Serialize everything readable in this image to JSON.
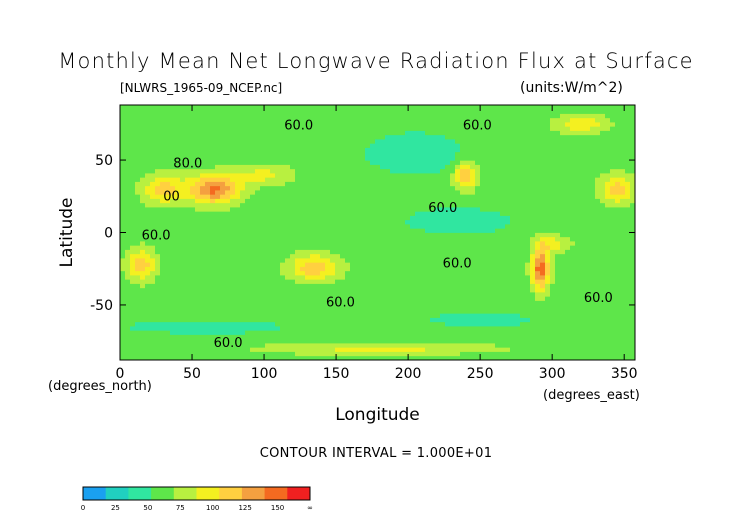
{
  "chart_data": {
    "type": "heatmap",
    "title": "Monthly Mean Net Longwave Radiation Flux at Surface",
    "file_label": "[NLWRS_1965-09_NCEP.nc]",
    "units_label": "(units:W/m^2)",
    "xlabel": "Longitude",
    "ylabel": "Latitude",
    "x_unit_label": "(degrees_east)",
    "y_unit_label": "(degrees_north)",
    "xlim": [
      0,
      357.5
    ],
    "ylim": [
      -88,
      88
    ],
    "x_ticks": [
      0,
      50,
      100,
      150,
      200,
      250,
      300,
      350
    ],
    "y_ticks": [
      -50,
      0,
      50
    ],
    "contour_interval_text": "CONTOUR INTERVAL = 1.000E+01",
    "contour_labels": [
      {
        "text": "60.0",
        "lon": 114,
        "lat": 71
      },
      {
        "text": "60.0",
        "lon": 238,
        "lat": 71
      },
      {
        "text": "80.0",
        "lon": 37,
        "lat": 45
      },
      {
        "text": "00",
        "lon": 30,
        "lat": 22
      },
      {
        "text": "60.0",
        "lon": 15,
        "lat": -5
      },
      {
        "text": "60.0",
        "lon": 214,
        "lat": 14
      },
      {
        "text": "60.0",
        "lon": 224,
        "lat": -24
      },
      {
        "text": "60.0",
        "lon": 143,
        "lat": -51
      },
      {
        "text": "60.0",
        "lon": 322,
        "lat": -48
      },
      {
        "text": "60.0",
        "lon": 65,
        "lat": -79
      }
    ],
    "fields": [
      {
        "lon": 65,
        "lat": 30,
        "value": 140,
        "spread_lon": 18,
        "spread_lat": 10
      },
      {
        "lon": 30,
        "lat": 30,
        "value": 110,
        "spread_lon": 14,
        "spread_lat": 10
      },
      {
        "lon": 100,
        "lat": 40,
        "value": 90,
        "spread_lon": 20,
        "spread_lat": 7
      },
      {
        "lon": 15,
        "lat": -22,
        "value": 110,
        "spread_lon": 10,
        "spread_lat": 11
      },
      {
        "lon": 135,
        "lat": -24,
        "value": 115,
        "spread_lon": 17,
        "spread_lat": 9
      },
      {
        "lon": 240,
        "lat": 40,
        "value": 115,
        "spread_lon": 8,
        "spread_lat": 10
      },
      {
        "lon": 292,
        "lat": -25,
        "value": 150,
        "spread_lon": 6,
        "spread_lat": 14
      },
      {
        "lon": 300,
        "lat": -8,
        "value": 95,
        "spread_lon": 12,
        "spread_lat": 6
      },
      {
        "lon": 345,
        "lat": 30,
        "value": 110,
        "spread_lon": 12,
        "spread_lat": 10
      },
      {
        "lon": 320,
        "lat": 75,
        "value": 100,
        "spread_lon": 18,
        "spread_lat": 6
      },
      {
        "lon": 205,
        "lat": 55,
        "value": 35,
        "spread_lon": 35,
        "spread_lat": 14
      },
      {
        "lon": 235,
        "lat": 8,
        "value": 40,
        "spread_lon": 40,
        "spread_lat": 10
      },
      {
        "lon": 60,
        "lat": -65,
        "value": 40,
        "spread_lon": 60,
        "spread_lat": 5
      },
      {
        "lon": 250,
        "lat": -60,
        "value": 40,
        "spread_lon": 40,
        "spread_lat": 5
      },
      {
        "lon": 180,
        "lat": -80,
        "value": 90,
        "spread_lon": 80,
        "spread_lat": 4
      }
    ],
    "background_value": 60,
    "colorbar": {
      "levels": [
        0,
        25,
        50,
        75,
        100,
        125,
        150,
        "∞"
      ],
      "colors": [
        "#1aa0f0",
        "#20d0c0",
        "#30e6a0",
        "#5ee64a",
        "#b8f040",
        "#f4f020",
        "#ffd040",
        "#f4a040",
        "#f46a20",
        "#f02020"
      ]
    }
  }
}
